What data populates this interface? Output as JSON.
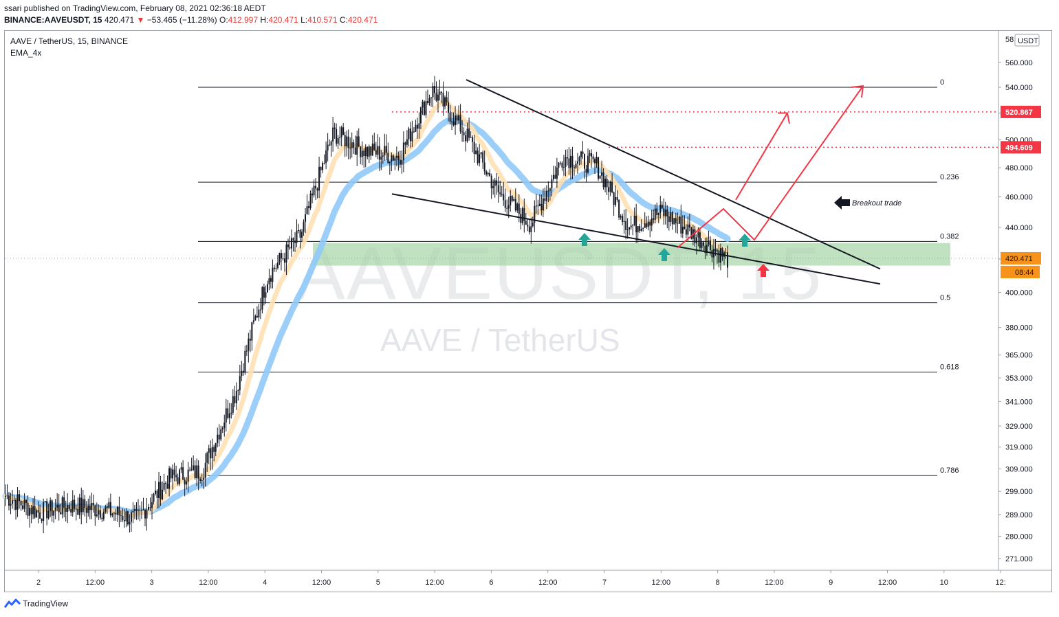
{
  "header": {
    "publish_line": "ssari published on TradingView.com, February 08, 2021 02:36:18 AEDT",
    "ticker": "BINANCE:AAVEUSDT, 15",
    "price": "420.471",
    "change": "−53.465 (−11.28%)",
    "ohlc": {
      "o_label": "O:",
      "o": "412.997",
      "h_label": "H:",
      "h": "420.471",
      "l_label": "L:",
      "l": "410.571",
      "c_label": "C:",
      "c": "420.471"
    }
  },
  "legend": {
    "symbol_line": "AAVE / TetherUS, 15, BINANCE",
    "indicator": "EMA_4x"
  },
  "watermark": {
    "main": "AAVEUSDT, 15",
    "sub": "AAVE / TetherUS"
  },
  "price_axis": {
    "currency": "USDT",
    "top_clipped": "58",
    "ticks": [
      "560.000",
      "540.000",
      "520.000",
      "500.000",
      "480.000",
      "460.000",
      "440.000",
      "420.000",
      "400.000",
      "380.000",
      "365.000",
      "353.000",
      "341.000",
      "329.000",
      "319.000",
      "309.000",
      "299.000",
      "289.000",
      "280.000",
      "271.000"
    ]
  },
  "time_axis": {
    "ticks": [
      "2",
      "12:00",
      "3",
      "12:00",
      "4",
      "12:00",
      "5",
      "12:00",
      "6",
      "12:00",
      "7",
      "12:00",
      "8",
      "12:00",
      "9",
      "12:00",
      "10",
      "12:"
    ]
  },
  "price_badges": [
    {
      "text": "520.867",
      "color": "#f23645"
    },
    {
      "text": "494.609",
      "color": "#f23645"
    },
    {
      "text": "420.471",
      "color": "#f7931a"
    },
    {
      "text": "08:44",
      "color": "#f7931a"
    }
  ],
  "fib_levels": [
    "0",
    "0.236",
    "0.382",
    "0.5",
    "0.618",
    "0.786"
  ],
  "annotations": {
    "breakout": "Breakout trade"
  },
  "colors": {
    "ema": "#90caf9",
    "ema_fast": "#ffe0b2",
    "support_zone": "#a5d6a7",
    "arrow_up": "#26a69a",
    "arrow_down": "#f23645",
    "projection": "#f23645",
    "candle": "#131722"
  },
  "brand": {
    "name": "TradingView"
  },
  "chart_data": {
    "type": "candlestick",
    "title": "AAVE / TetherUS, 15, BINANCE",
    "ylabel": "USDT",
    "ylim": [
      260,
      585
    ],
    "y_scale": "log",
    "x": [
      "Feb 2",
      "Feb 2 12:00",
      "Feb 3",
      "Feb 3 12:00",
      "Feb 4",
      "Feb 4 12:00",
      "Feb 5",
      "Feb 5 12:00",
      "Feb 6",
      "Feb 6 12:00",
      "Feb 7",
      "Feb 7 12:00",
      "Feb 8"
    ],
    "close_path": [
      297,
      290,
      293,
      291,
      287,
      305,
      308,
      345,
      410,
      435,
      505,
      492,
      488,
      538,
      505,
      463,
      442,
      488,
      482,
      440,
      450,
      435,
      420
    ],
    "last_price": 420.471,
    "fib_retracement": [
      {
        "level": "0",
        "price": 540
      },
      {
        "level": "0.236",
        "price": 470
      },
      {
        "level": "0.382",
        "price": 431
      },
      {
        "level": "0.5",
        "price": 394
      },
      {
        "level": "0.618",
        "price": 356
      },
      {
        "level": "0.786",
        "price": 306
      }
    ],
    "resistance_levels": [
      520.867,
      494.609
    ],
    "support_zone": [
      416,
      430
    ],
    "trendlines": [
      "descending resistance from 6 Feb high",
      "descending support from 5 Feb"
    ],
    "annotation": "Breakout trade",
    "grid": false
  }
}
